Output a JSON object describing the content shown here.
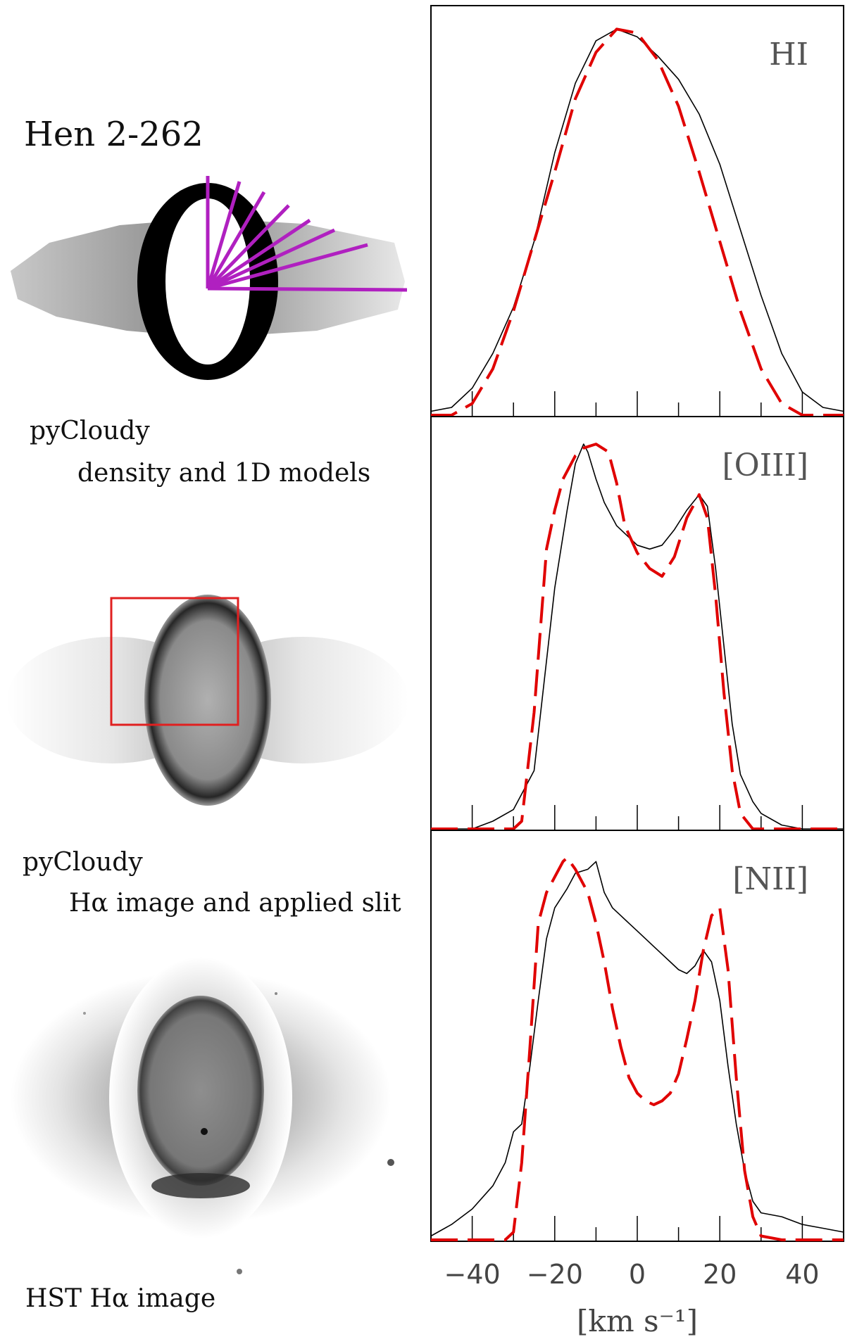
{
  "labels": {
    "title": "Hen 2-262",
    "density_line1": "pyCloudy",
    "density_line2": "density and 1D models",
    "halpha_line1": "pyCloudy",
    "halpha_line2": "Hα image and applied slit",
    "hst": "HST  Hα image"
  },
  "colors": {
    "observed": "#000000",
    "model": "#e00000",
    "rays": "#b020c0",
    "slit": "#e02020"
  },
  "chart_data": {
    "type": "line",
    "xlabel": "[km s⁻¹]",
    "xlim": [
      -50,
      50
    ],
    "xticks": [
      -40,
      -20,
      0,
      20,
      40
    ],
    "shared_x_axis": true,
    "panels": [
      {
        "label": "HI",
        "ylim": [
          0,
          1.05
        ],
        "series": [
          {
            "style": "solid-black",
            "x": [
              -50,
              -45,
              -40,
              -35,
              -30,
              -25,
              -20,
              -15,
              -10,
              -5,
              0,
              5,
              10,
              15,
              20,
              25,
              30,
              35,
              40,
              45,
              50
            ],
            "y": [
              0.01,
              0.02,
              0.07,
              0.16,
              0.28,
              0.45,
              0.68,
              0.86,
              0.97,
              1.0,
              0.98,
              0.93,
              0.87,
              0.78,
              0.65,
              0.48,
              0.31,
              0.16,
              0.06,
              0.02,
              0.01
            ]
          },
          {
            "style": "dashed-red",
            "x": [
              -50,
              -45,
              -40,
              -35,
              -30,
              -25,
              -20,
              -15,
              -10,
              -5,
              0,
              5,
              10,
              15,
              20,
              25,
              30,
              35,
              40,
              45,
              50
            ],
            "y": [
              0.0,
              0.0,
              0.03,
              0.12,
              0.27,
              0.45,
              0.63,
              0.82,
              0.94,
              1.0,
              0.99,
              0.92,
              0.8,
              0.63,
              0.45,
              0.27,
              0.12,
              0.03,
              0.0,
              0.0,
              0.0
            ]
          }
        ]
      },
      {
        "label": "[OIII]",
        "ylim": [
          0,
          1.05
        ],
        "series": [
          {
            "style": "solid-black",
            "x": [
              -50,
              -40,
              -35,
              -30,
              -25,
              -20,
              -17,
              -15,
              -13,
              -12,
              -10,
              -8,
              -5,
              -3,
              0,
              3,
              6,
              9,
              12,
              15,
              17,
              19,
              21,
              23,
              25,
              28,
              30,
              35,
              40,
              45,
              50
            ],
            "y": [
              0.0,
              0.0,
              0.02,
              0.05,
              0.15,
              0.62,
              0.82,
              0.94,
              0.99,
              0.97,
              0.9,
              0.84,
              0.78,
              0.76,
              0.73,
              0.72,
              0.73,
              0.77,
              0.82,
              0.86,
              0.83,
              0.67,
              0.47,
              0.27,
              0.14,
              0.07,
              0.04,
              0.01,
              0.0,
              0.0,
              0.0
            ]
          },
          {
            "style": "dashed-red",
            "x": [
              -50,
              -35,
              -30,
              -28,
              -25,
              -22,
              -20,
              -18,
              -15,
              -13,
              -10,
              -7,
              -5,
              -3,
              0,
              3,
              6,
              9,
              12,
              15,
              17,
              19,
              21,
              23,
              25,
              28,
              30,
              32,
              35,
              45,
              50
            ],
            "y": [
              0.0,
              0.0,
              0.0,
              0.02,
              0.3,
              0.72,
              0.82,
              0.9,
              0.96,
              0.98,
              0.99,
              0.97,
              0.89,
              0.78,
              0.71,
              0.67,
              0.65,
              0.7,
              0.8,
              0.86,
              0.8,
              0.6,
              0.35,
              0.15,
              0.04,
              0.0,
              0.0,
              0.0,
              0.0,
              0.0,
              0.0
            ]
          }
        ]
      },
      {
        "label": "[NII]",
        "ylim": [
          0,
          1.05
        ],
        "series": [
          {
            "style": "solid-black",
            "x": [
              -50,
              -45,
              -40,
              -35,
              -32,
              -30,
              -28,
              -26,
              -24,
              -22,
              -20,
              -17,
              -15,
              -12,
              -10,
              -8,
              -6,
              -4,
              -2,
              0,
              2,
              4,
              6,
              8,
              10,
              12,
              14,
              16,
              18,
              20,
              22,
              24,
              26,
              28,
              30,
              35,
              40,
              45,
              50
            ],
            "y": [
              0.01,
              0.04,
              0.08,
              0.14,
              0.2,
              0.28,
              0.3,
              0.45,
              0.62,
              0.78,
              0.86,
              0.91,
              0.95,
              0.96,
              0.98,
              0.9,
              0.86,
              0.84,
              0.82,
              0.8,
              0.78,
              0.76,
              0.74,
              0.72,
              0.7,
              0.69,
              0.71,
              0.75,
              0.72,
              0.62,
              0.45,
              0.3,
              0.18,
              0.1,
              0.07,
              0.06,
              0.04,
              0.03,
              0.02
            ]
          },
          {
            "style": "dashed-red",
            "x": [
              -50,
              -35,
              -32,
              -30,
              -28,
              -26,
              -24,
              -22,
              -20,
              -18,
              -17,
              -15,
              -12,
              -10,
              -8,
              -6,
              -4,
              -2,
              0,
              2,
              4,
              6,
              8,
              10,
              12,
              14,
              16,
              18,
              20,
              22,
              24,
              26,
              28,
              30,
              35,
              50
            ],
            "y": [
              0.0,
              0.0,
              0.0,
              0.02,
              0.2,
              0.5,
              0.82,
              0.9,
              0.94,
              0.98,
              0.99,
              0.96,
              0.9,
              0.82,
              0.72,
              0.6,
              0.5,
              0.42,
              0.38,
              0.36,
              0.35,
              0.36,
              0.38,
              0.43,
              0.52,
              0.62,
              0.75,
              0.84,
              0.86,
              0.7,
              0.42,
              0.18,
              0.06,
              0.01,
              0.0,
              0.0
            ]
          }
        ]
      }
    ]
  }
}
